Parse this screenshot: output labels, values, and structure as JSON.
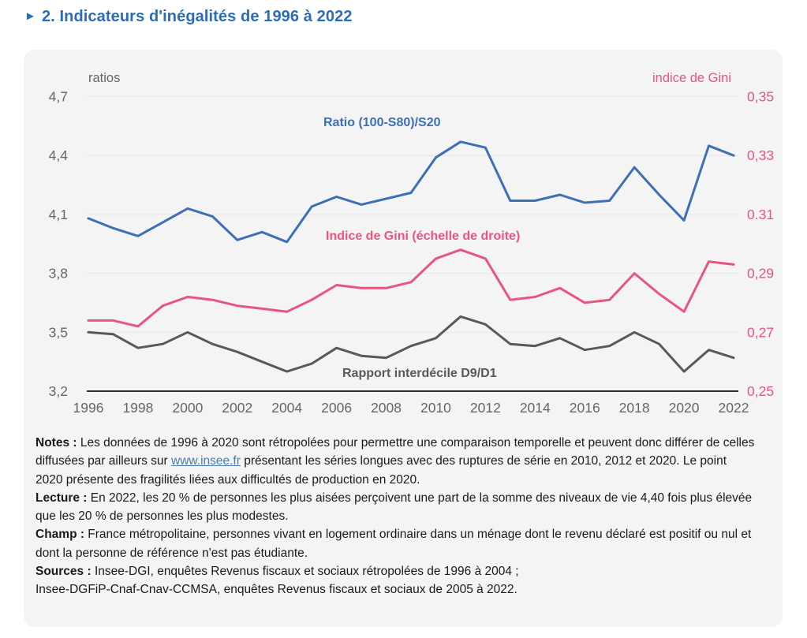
{
  "header": {
    "arrow_icon": "►",
    "title": "2. Indicateurs d'inégalités de 1996 à 2022"
  },
  "chart_data": {
    "type": "line",
    "title": "Indicateurs d'inégalités de 1996 à 2022",
    "grid": true,
    "legend_position": "inline-annotations",
    "x": [
      1996,
      1997,
      1998,
      1999,
      2000,
      2001,
      2002,
      2003,
      2004,
      2005,
      2006,
      2007,
      2008,
      2009,
      2010,
      2011,
      2012,
      2013,
      2014,
      2015,
      2016,
      2017,
      2018,
      2019,
      2020,
      2021,
      2022
    ],
    "x_tick_labels": [
      "1996",
      "1998",
      "2000",
      "2002",
      "2004",
      "2006",
      "2008",
      "2010",
      "2012",
      "2014",
      "2016",
      "2018",
      "2020",
      "2022"
    ],
    "left_axis": {
      "unit_label": "ratios",
      "min": 3.2,
      "max": 4.7,
      "ticks": [
        {
          "value": 4.7,
          "label": "4,7"
        },
        {
          "value": 4.4,
          "label": "4,4"
        },
        {
          "value": 4.1,
          "label": "4,1"
        },
        {
          "value": 3.8,
          "label": "3,8"
        },
        {
          "value": 3.5,
          "label": "3,5"
        },
        {
          "value": 3.2,
          "label": "3,2"
        }
      ],
      "text_color": "#666666"
    },
    "right_axis": {
      "unit_label": "indice de Gini",
      "min": 0.25,
      "max": 0.35,
      "ticks": [
        {
          "value": 0.35,
          "label": "0,35"
        },
        {
          "value": 0.33,
          "label": "0,33"
        },
        {
          "value": 0.31,
          "label": "0.31"
        },
        {
          "value": 0.29,
          "label": "0,29"
        },
        {
          "value": 0.27,
          "label": "0,27"
        },
        {
          "value": 0.25,
          "label": "0,25"
        }
      ],
      "text_color": "#e8557d"
    },
    "series": [
      {
        "name": "Ratio (100-S80)/S20",
        "axis": "left",
        "color": "#3d6fb4",
        "values": [
          4.08,
          4.03,
          3.99,
          4.06,
          4.13,
          4.09,
          3.97,
          4.01,
          3.96,
          4.14,
          4.19,
          4.15,
          4.18,
          4.21,
          4.39,
          4.47,
          4.44,
          4.17,
          4.17,
          4.2,
          4.16,
          4.17,
          4.34,
          4.2,
          4.07,
          4.45,
          4.4
        ]
      },
      {
        "name": "Indice de Gini (échelle de droite)",
        "axis": "right",
        "color": "#e8557d",
        "values": [
          0.274,
          0.274,
          0.272,
          0.279,
          0.282,
          0.281,
          0.279,
          0.278,
          0.277,
          0.281,
          0.286,
          0.285,
          0.285,
          0.287,
          0.295,
          0.298,
          0.295,
          0.281,
          0.282,
          0.285,
          0.28,
          0.281,
          0.29,
          0.283,
          0.277,
          0.294,
          0.293
        ]
      },
      {
        "name": "Rapport interdécile D9/D1",
        "axis": "left",
        "color": "#595959",
        "values": [
          3.5,
          3.49,
          3.42,
          3.44,
          3.5,
          3.44,
          3.4,
          3.35,
          3.3,
          3.34,
          3.42,
          3.38,
          3.37,
          3.43,
          3.47,
          3.58,
          3.54,
          3.44,
          3.43,
          3.47,
          3.41,
          3.43,
          3.5,
          3.44,
          3.3,
          3.41,
          3.37
        ]
      }
    ]
  },
  "notes": {
    "notes_label": "Notes :",
    "notes_before_link": " Les données de 1996 à 2020 sont rétropolées pour permettre une comparaison temporelle et peuvent donc différer de celles diffusées par ailleurs sur ",
    "notes_link": "www.insee.fr",
    "notes_after_link": " présentant les séries longues avec des ruptures de série en 2010, 2012 et 2020. Le point 2020 présente des fragilités liées aux difficultés de production en 2020.",
    "lecture_label": "Lecture :",
    "lecture_text": " En 2022, les 20 % de personnes les plus aisées perçoivent une part de la somme des niveaux de vie 4,40 fois plus élevée que les 20 % de personnes les plus modestes.",
    "champ_label": "Champ :",
    "champ_text": " France métropolitaine, personnes vivant en logement ordinaire dans un ménage dont le revenu déclaré est positif ou nul et dont la personne de référence n'est pas étudiante.",
    "sources_label": "Sources :",
    "sources_line1": " Insee-DGI, enquêtes Revenus fiscaux et sociaux rétropolées de 1996 à 2004 ;",
    "sources_line2": "Insee-DGFiP-Cnaf-Cnav-CCMSA, enquêtes Revenus fiscaux et sociaux de 2005 à 2022."
  }
}
